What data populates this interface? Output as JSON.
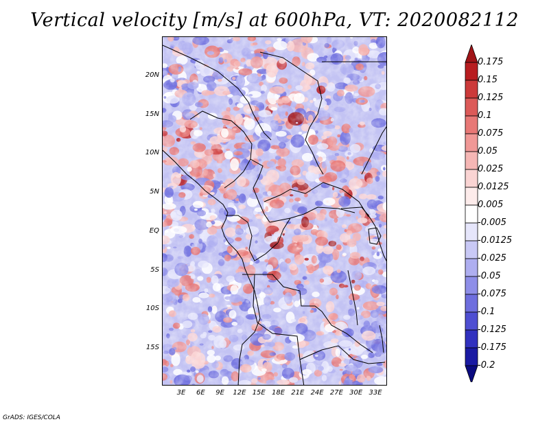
{
  "title": "Vertical velocity [m/s] at 600hPa, VT: 2020082112",
  "credit": "GrADS: IGES/COLA",
  "latitude_labels": [
    "20N",
    "15N",
    "10N",
    "5N",
    "EQ",
    "5S",
    "10S",
    "15S"
  ],
  "longitude_labels": [
    "3E",
    "6E",
    "9E",
    "12E",
    "15E",
    "18E",
    "21E",
    "24E",
    "27E",
    "30E",
    "33E"
  ],
  "colorbar": {
    "labels": [
      "0.175",
      "0.15",
      "0.125",
      "0.1",
      "0.075",
      "0.05",
      "0.025",
      "0.0125",
      "0.005",
      "-0.005",
      "-0.0125",
      "-0.025",
      "-0.05",
      "-0.075",
      "-0.1",
      "-0.125",
      "-0.175",
      "-0.2"
    ],
    "colors": [
      "#a01417",
      "#b81d20",
      "#cc3a3a",
      "#dc5a58",
      "#e87876",
      "#f09896",
      "#f6b7b5",
      "#fad4d3",
      "#fdeceb",
      "#ffffff",
      "#e6e6fb",
      "#c9c9f6",
      "#aeaef0",
      "#8e8ee8",
      "#6e6ede",
      "#4f4fd2",
      "#3131bf",
      "#1a1aa3",
      "#0b0b80"
    ]
  },
  "map_colors": {
    "ocean": "#b7b7f2",
    "positive": "#e98b88",
    "strong_positive": "#b91e22",
    "negative": "#8f8fe6",
    "border": "#000000"
  }
}
